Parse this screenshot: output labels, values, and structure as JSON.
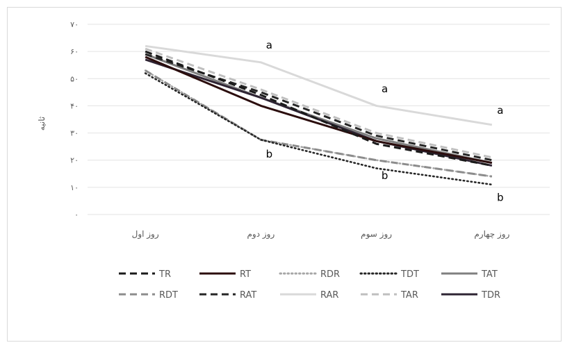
{
  "chart_data": {
    "type": "line",
    "title": "",
    "xlabel": "",
    "ylabel": "ثانیه",
    "ylim": [
      0,
      70
    ],
    "yticks": [
      {
        "value": 0,
        "label": "۰"
      },
      {
        "value": 10,
        "label": "۱۰"
      },
      {
        "value": 20,
        "label": "۲۰"
      },
      {
        "value": 30,
        "label": "۳۰"
      },
      {
        "value": 40,
        "label": "۴۰"
      },
      {
        "value": 50,
        "label": "۵۰"
      },
      {
        "value": 60,
        "label": "۶۰"
      },
      {
        "value": 70,
        "label": "۷۰"
      }
    ],
    "categories": [
      "روز اول",
      "روز دوم",
      "روز سوم",
      "روز چهارم"
    ],
    "grid": true,
    "legend_position": "bottom",
    "series": [
      {
        "name": "TR",
        "values": [
          60,
          44,
          26,
          18
        ],
        "color": "#1a1a1a",
        "dash": "dash"
      },
      {
        "name": "RT",
        "values": [
          58,
          40,
          27,
          19
        ],
        "color": "#2b0d0d",
        "dash": "solid"
      },
      {
        "name": "RDR",
        "values": [
          53,
          27.5,
          20,
          14
        ],
        "color": "#a6a6a6",
        "dash": "dot"
      },
      {
        "name": "TDT",
        "values": [
          52,
          27.5,
          17,
          11
        ],
        "color": "#262626",
        "dash": "dot"
      },
      {
        "name": "TAT",
        "values": [
          59,
          43,
          28,
          19
        ],
        "color": "#7f7f7f",
        "dash": "solid"
      },
      {
        "name": "RDT",
        "values": [
          53,
          27.5,
          20,
          14
        ],
        "color": "#8c8c8c",
        "dash": "dash"
      },
      {
        "name": "RAT",
        "values": [
          59,
          45,
          29,
          20
        ],
        "color": "#262626",
        "dash": "dash"
      },
      {
        "name": "RAR",
        "values": [
          62,
          56,
          40,
          33
        ],
        "color": "#d9d9d9",
        "dash": "solid"
      },
      {
        "name": "TAR",
        "values": [
          61,
          46,
          30,
          21
        ],
        "color": "#bfbfbf",
        "dash": "dash"
      },
      {
        "name": "TDR",
        "values": [
          57,
          43,
          27,
          18
        ],
        "color": "#2e2433",
        "dash": "solid"
      }
    ],
    "annotations": [
      {
        "text": "a",
        "category": 1,
        "y": 61
      },
      {
        "text": "a",
        "category": 2,
        "y": 45
      },
      {
        "text": "a",
        "category": 3,
        "y": 37
      },
      {
        "text": "b",
        "category": 1,
        "y": 21
      },
      {
        "text": "b",
        "category": 2,
        "y": 13
      },
      {
        "text": "b",
        "category": 3,
        "y": 5
      }
    ]
  }
}
